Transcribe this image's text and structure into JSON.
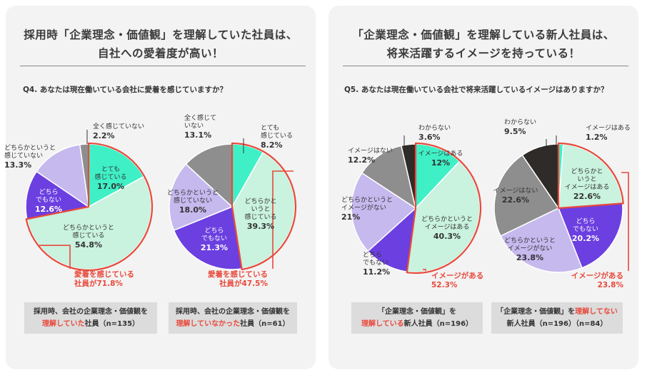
{
  "left": {
    "title_line1": "採用時「企業理念・価値観」を理解していた社員は、",
    "title_line2": "自社への愛着度が高い！",
    "question": "Q4. あなたは現在働いている会社に愛着を感じていますか？",
    "caption1_line1": "採用時、会社の企業理念・価値観を",
    "caption1_red": "理解していた",
    "caption1_rest": "社員（n=135）",
    "caption2_line1": "採用時、会社の企業理念・価値観を",
    "caption2_red": "理解していなかった",
    "caption2_rest": "社員（n=61）"
  },
  "right": {
    "title_line1": "「企業理念・価値観」を理解している新人社員は、",
    "title_line2": "将来活躍するイメージを持っている！",
    "question": "Q5. あなたは現在働いている会社で将来活躍しているイメージはありますか？",
    "caption3_line1": "「企業理念・価値観」を",
    "caption3_red": "理解している",
    "caption3_rest": "新人社員（n=196）",
    "caption4_pre": "「企業理念・価値観」を",
    "caption4_red": "理解してない",
    "caption4_line2": "新人社員（n=196）（n=84）"
  },
  "colors": {
    "mint": "#3ff0c6",
    "light_green": "#c9f2df",
    "purple": "#6b3fe0",
    "lavender": "#c5b9ee",
    "gray": "#8e8e8e",
    "dark": "#2e2b28",
    "red": "#e8493b"
  },
  "chart_data": [
    {
      "type": "pie",
      "slices": [
        {
          "label": "とても感じている",
          "value": 17.0,
          "color": "#3ff0c6"
        },
        {
          "label": "どちらかというと感じている",
          "value": 54.8,
          "color": "#c9f2df"
        },
        {
          "label": "どちらでもない",
          "value": 12.6,
          "color": "#6b3fe0"
        },
        {
          "label": "どちらかというと感じていない",
          "value": 13.3,
          "color": "#c5b9ee"
        },
        {
          "label": "全く感じていない",
          "value": 2.2,
          "color": "#8e8e8e"
        }
      ],
      "labels": [
        {
          "lines": [
            "とても",
            "感じている"
          ],
          "value": "17.0%",
          "fill": "#333"
        },
        {
          "lines": [
            "どちらかというと",
            "感じている"
          ],
          "value": "54.8%",
          "fill": "#333"
        },
        {
          "lines": [
            "どちら",
            "でもない"
          ],
          "value": "12.6%",
          "fill": "#fff"
        },
        {
          "lines": [
            "どちらかというと",
            "感じていない"
          ],
          "value": "13.3%",
          "fill": "#333"
        },
        {
          "lines": [
            "全く感じていない"
          ],
          "value": "2.2%",
          "fill": "#333"
        }
      ],
      "highlight": {
        "text_line1": "愛着を感じている",
        "text_line2": "社員が71.8%"
      }
    },
    {
      "type": "pie",
      "slices": [
        {
          "label": "とても感じている",
          "value": 8.2,
          "color": "#3ff0c6"
        },
        {
          "label": "どちらかというと感じている",
          "value": 39.3,
          "color": "#c9f2df"
        },
        {
          "label": "どちらでもない",
          "value": 21.3,
          "color": "#6b3fe0"
        },
        {
          "label": "どちらかというと感じていない",
          "value": 18.0,
          "color": "#c5b9ee"
        },
        {
          "label": "全く感じていない",
          "value": 13.1,
          "color": "#8e8e8e"
        }
      ],
      "labels": [
        {
          "lines": [
            "とても",
            "感じている"
          ],
          "value": "8.2%",
          "fill": "#333"
        },
        {
          "lines": [
            "どちらかと",
            "いうと",
            "感じている"
          ],
          "value": "39.3%",
          "fill": "#333"
        },
        {
          "lines": [
            "どちら",
            "でもない"
          ],
          "value": "21.3%",
          "fill": "#fff"
        },
        {
          "lines": [
            "どちらかというと",
            "感じていない"
          ],
          "value": "18.0%",
          "fill": "#333"
        },
        {
          "lines": [
            "全く感じて",
            "いない"
          ],
          "value": "13.1%",
          "fill": "#333"
        }
      ],
      "highlight": {
        "text_line1": "愛着を感じている",
        "text_line2": "社員が47.5%"
      }
    },
    {
      "type": "pie",
      "slices": [
        {
          "label": "イメージはある",
          "value": 12,
          "color": "#3ff0c6"
        },
        {
          "label": "どちらかというとイメージはある",
          "value": 40.3,
          "color": "#c9f2df"
        },
        {
          "label": "どちらでもない",
          "value": 11.2,
          "color": "#6b3fe0"
        },
        {
          "label": "どちらかというとイメージがない",
          "value": 21,
          "color": "#c5b9ee"
        },
        {
          "label": "イメージはない",
          "value": 12.2,
          "color": "#8e8e8e"
        },
        {
          "label": "わからない",
          "value": 3.6,
          "color": "#2e2b28"
        }
      ],
      "labels": [
        {
          "lines": [
            "イメージはある"
          ],
          "value": "12%",
          "fill": "#333"
        },
        {
          "lines": [
            "どちらかというと",
            "イメージはある"
          ],
          "value": "40.3%",
          "fill": "#333"
        },
        {
          "lines": [
            "どちら",
            "でもない"
          ],
          "value": "11.2%",
          "fill": "#333"
        },
        {
          "lines": [
            "どちらかというと",
            "イメージがない"
          ],
          "value": "21%",
          "fill": "#333"
        },
        {
          "lines": [
            "イメージはない"
          ],
          "value": "12.2%",
          "fill": "#333"
        },
        {
          "lines": [
            "わからない"
          ],
          "value": "3.6%",
          "fill": "#333"
        }
      ],
      "highlight": {
        "text_line1": "イメージがある",
        "text_line2": "52.3%"
      }
    },
    {
      "type": "pie",
      "slices": [
        {
          "label": "イメージはある",
          "value": 1.2,
          "color": "#3ff0c6"
        },
        {
          "label": "どちらかというとイメージはある",
          "value": 22.6,
          "color": "#c9f2df"
        },
        {
          "label": "どちらでもない",
          "value": 20.2,
          "color": "#6b3fe0"
        },
        {
          "label": "どちらかというとイメージがない",
          "value": 23.8,
          "color": "#c5b9ee"
        },
        {
          "label": "イメージはない",
          "value": 22.6,
          "color": "#8e8e8e"
        },
        {
          "label": "わからない",
          "value": 9.5,
          "color": "#2e2b28"
        }
      ],
      "labels": [
        {
          "lines": [
            "イメージはある"
          ],
          "value": "1.2%",
          "fill": "#333"
        },
        {
          "lines": [
            "どちらかと",
            "いうと",
            "イメージはある"
          ],
          "value": "22.6%",
          "fill": "#333"
        },
        {
          "lines": [
            "どちら",
            "でもない"
          ],
          "value": "20.2%",
          "fill": "#fff"
        },
        {
          "lines": [
            "どちらかというと",
            "イメージがない"
          ],
          "value": "23.8%",
          "fill": "#333"
        },
        {
          "lines": [
            "イメージはない"
          ],
          "value": "22.6%",
          "fill": "#333"
        },
        {
          "lines": [
            "わからない"
          ],
          "value": "9.5%",
          "fill": "#333"
        }
      ],
      "highlight": {
        "text_line1": "イメージがある",
        "text_line2": "23.8%"
      }
    }
  ]
}
